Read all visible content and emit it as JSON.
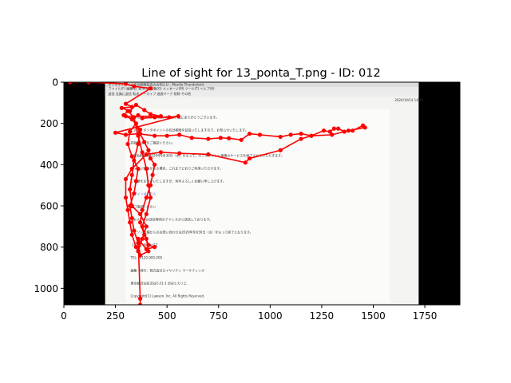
{
  "chart_data": {
    "type": "scatter",
    "title": "Line of sight for 13_ponta_T.png - ID: 012",
    "xlabel": "",
    "ylabel": "",
    "xlim": [
      0,
      1920
    ],
    "ylim": [
      1080,
      0
    ],
    "x_ticks": [
      0,
      250,
      500,
      750,
      1000,
      1250,
      1500,
      1750
    ],
    "y_ticks": [
      0,
      200,
      400,
      600,
      800,
      1000
    ],
    "grid": false,
    "legend": "none",
    "colors": {
      "gaze": "#ff0000",
      "letterbox": "#000000",
      "background_image": "#f4f4f1"
    },
    "background_image": {
      "extent_x": [
        200,
        1720
      ],
      "extent_y": [
        0,
        1080
      ],
      "inner_page_x": [
        300,
        1580
      ],
      "inner_page_y": [
        130,
        1070
      ],
      "header_text": [
        "ポンタポイントの有効期限延長のお知らせ - Mozilla Thunderbird",
        "ファイル(F)  編集(E)  表示(V)  移動(G)  メッセージ(M)  ツール(T)  ヘルプ(H)",
        "返信  全員に返信  転送  アーカイブ  迷惑マーク  削除  その他",
        "2020/10/14 14:43"
      ],
      "body_text": [
        "いつもPontaをご利用いただき、誠にありがとうございます。",
        "この度、ポンタポイントの有効期限を延長いたしますので、お知らせいたします。",
        "詳細は以下をご確認ください。",
        "※有効期限は2020年9月30日（水）をもって、ポンタポイント連携のサービスを終了させていただきます。",
        "チャージ残高がある場合、これまでどおりご利用いただけます。",
        "ご不便をおかけいたしますが、何卒よろしくお願い申し上げます。",
        "ログインはこちら",
        "■ご確認ください",
        "※本メールは送信専用のアドレスから送信しております。",
        "ローソン店舗からのお問い合わせは2020年9月30日（水）をもって終了となります。",
        "【お問い合わせ先】",
        "TEL：0120-000-000",
        "編集・発行：株式会社ロイヤリティ マーケティング",
        "東京都渋谷区渋谷2-21-1 渋谷ヒカリエ",
        "Copyright(C) Lawson, Inc. All Rights Reserved."
      ]
    },
    "series": [
      {
        "points": [
          [
            30,
            0
          ],
          [
            120,
            0
          ],
          [
            300,
            8
          ],
          [
            340,
            20
          ],
          [
            420,
            30
          ],
          [
            300,
            105
          ],
          [
            330,
            120
          ],
          [
            280,
            125
          ],
          [
            320,
            140
          ],
          [
            350,
            110
          ],
          [
            390,
            135
          ],
          [
            420,
            155
          ],
          [
            470,
            165
          ],
          [
            300,
            165
          ],
          [
            330,
            178
          ],
          [
            360,
            160
          ],
          [
            380,
            175
          ],
          [
            440,
            170
          ],
          [
            510,
            170
          ],
          [
            555,
            165
          ],
          [
            250,
            245
          ],
          [
            300,
            255
          ],
          [
            360,
            250
          ],
          [
            440,
            260
          ],
          [
            500,
            260
          ],
          [
            560,
            255
          ],
          [
            620,
            270
          ],
          [
            700,
            275
          ],
          [
            760,
            270
          ],
          [
            800,
            272
          ],
          [
            860,
            280
          ],
          [
            900,
            250
          ],
          [
            950,
            255
          ],
          [
            1050,
            265
          ],
          [
            1100,
            255
          ],
          [
            1150,
            250
          ],
          [
            1200,
            260
          ],
          [
            1260,
            235
          ],
          [
            1290,
            240
          ],
          [
            1310,
            225
          ],
          [
            1330,
            225
          ],
          [
            1360,
            240
          ],
          [
            1400,
            235
          ],
          [
            1450,
            210
          ],
          [
            1460,
            220
          ],
          [
            1380,
            235
          ],
          [
            1300,
            255
          ],
          [
            1200,
            260
          ],
          [
            1150,
            275
          ],
          [
            1050,
            330
          ],
          [
            900,
            370
          ],
          [
            880,
            390
          ],
          [
            700,
            350
          ],
          [
            560,
            345
          ],
          [
            470,
            340
          ],
          [
            400,
            350
          ],
          [
            330,
            420
          ],
          [
            300,
            470
          ],
          [
            300,
            560
          ],
          [
            310,
            620
          ],
          [
            320,
            680
          ],
          [
            330,
            740
          ],
          [
            350,
            800
          ],
          [
            360,
            820
          ],
          [
            380,
            760
          ],
          [
            400,
            700
          ],
          [
            370,
            640
          ],
          [
            330,
            600
          ],
          [
            320,
            520
          ],
          [
            330,
            450
          ],
          [
            340,
            380
          ],
          [
            360,
            300
          ],
          [
            370,
            230
          ],
          [
            330,
            180
          ],
          [
            290,
            160
          ],
          [
            310,
            140
          ],
          [
            340,
            170
          ],
          [
            360,
            260
          ],
          [
            380,
            340
          ],
          [
            400,
            420
          ],
          [
            410,
            500
          ],
          [
            420,
            560
          ],
          [
            400,
            640
          ],
          [
            380,
            700
          ],
          [
            400,
            760
          ],
          [
            410,
            820
          ],
          [
            370,
            840
          ],
          [
            360,
            780
          ],
          [
            340,
            720
          ],
          [
            330,
            660
          ],
          [
            320,
            600
          ],
          [
            340,
            540
          ],
          [
            350,
            480
          ],
          [
            360,
            420
          ],
          [
            330,
            360
          ],
          [
            310,
            300
          ],
          [
            320,
            240
          ],
          [
            350,
            200
          ],
          [
            370,
            250
          ],
          [
            390,
            290
          ],
          [
            410,
            330
          ],
          [
            420,
            370
          ],
          [
            440,
            400
          ],
          [
            430,
            450
          ],
          [
            420,
            500
          ],
          [
            400,
            560
          ],
          [
            380,
            620
          ],
          [
            370,
            680
          ],
          [
            390,
            740
          ],
          [
            410,
            790
          ],
          [
            440,
            800
          ],
          [
            400,
            810
          ],
          [
            360,
            760
          ],
          [
            370,
            1050
          ],
          [
            370,
            1080
          ]
        ]
      }
    ],
    "ticks_format": "integer"
  }
}
